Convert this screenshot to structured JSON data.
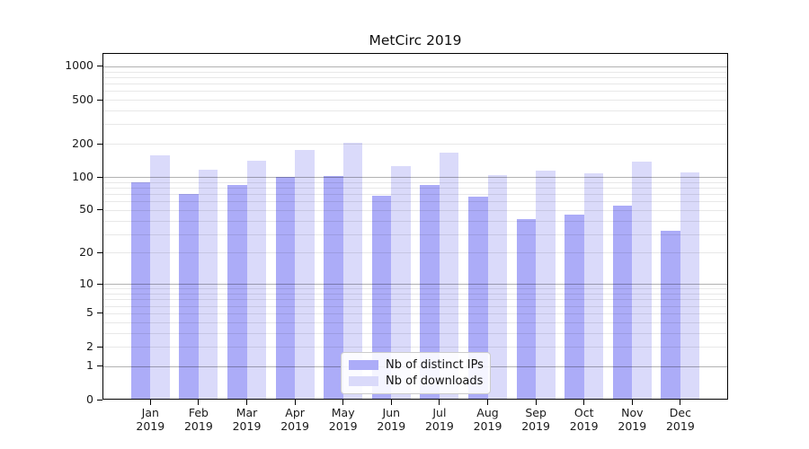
{
  "title": "MetCirc 2019",
  "chart_data": {
    "type": "bar",
    "title": "MetCirc 2019",
    "categories": [
      "Jan",
      "Feb",
      "Mar",
      "Apr",
      "May",
      "Jun",
      "Jul",
      "Aug",
      "Sep",
      "Oct",
      "Nov",
      "Dec"
    ],
    "category_year": "2019",
    "series": [
      {
        "name": "Nb of distinct IPs",
        "color": "#acacf8",
        "values": [
          90,
          70,
          84,
          101,
          102,
          67,
          84,
          66,
          41,
          45,
          55,
          32
        ]
      },
      {
        "name": "Nb of downloads",
        "color": "#dadafa",
        "values": [
          158,
          117,
          140,
          176,
          203,
          126,
          165,
          104,
          114,
          108,
          137,
          110
        ]
      }
    ],
    "y_axis": {
      "scale": "log1p",
      "ticks": [
        0,
        1,
        2,
        5,
        10,
        20,
        50,
        100,
        200,
        500,
        1000
      ],
      "range": [
        0,
        1300
      ]
    },
    "x_axis_label": "",
    "y_axis_label": "",
    "grid": "horizontal",
    "legend": {
      "position": "lower center",
      "entries": [
        "Nb of distinct IPs",
        "Nb of downloads"
      ]
    }
  }
}
